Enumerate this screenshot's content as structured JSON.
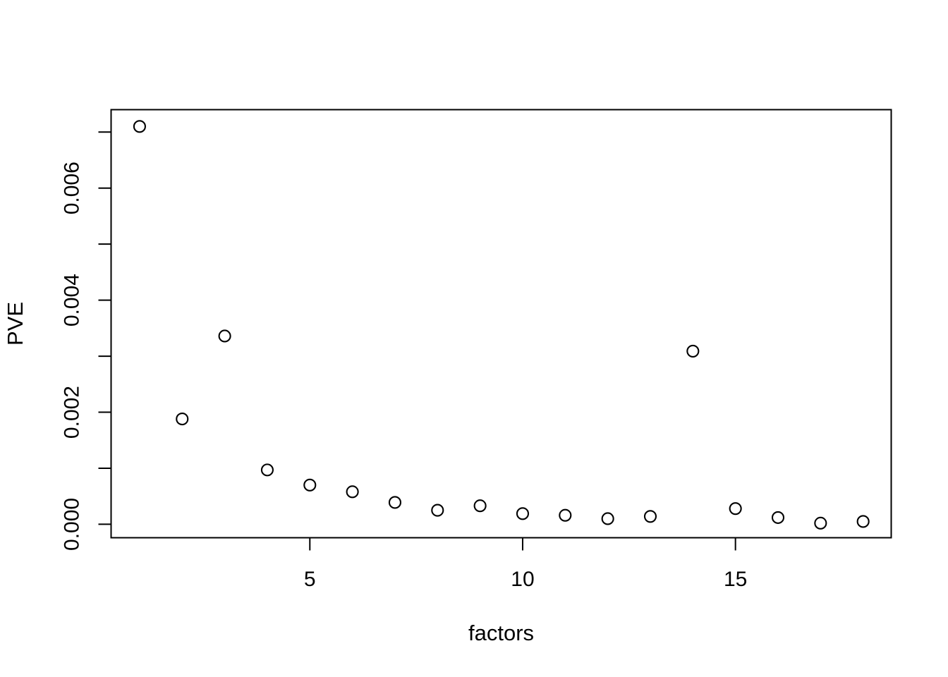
{
  "figure": {
    "background_color": "#ffffff",
    "foreground_color": "#000000"
  },
  "chart_data": {
    "type": "scatter",
    "title": "",
    "xlabel": "factors",
    "ylabel": "PVE",
    "marker": "open-circle",
    "grid": false,
    "legend": null,
    "xlim": [
      0.33,
      18.66
    ],
    "ylim": [
      -0.00024,
      0.0074
    ],
    "x": [
      1,
      2,
      3,
      4,
      5,
      6,
      7,
      8,
      9,
      10,
      11,
      12,
      13,
      14,
      15,
      16,
      17,
      18
    ],
    "y": [
      0.0071,
      0.00188,
      0.00336,
      0.00097,
      0.0007,
      0.00058,
      0.00039,
      0.00025,
      0.00033,
      0.00019,
      0.00016,
      0.0001,
      0.00014,
      0.00309,
      0.00028,
      0.00012,
      2e-05,
      5e-05
    ],
    "x_ticks": [
      {
        "value": 5,
        "label": "5"
      },
      {
        "value": 10,
        "label": "10"
      },
      {
        "value": 15,
        "label": "15"
      }
    ],
    "y_ticks": [
      {
        "value": 0.0,
        "label": "0.000"
      },
      {
        "value": 0.001,
        "label": ""
      },
      {
        "value": 0.002,
        "label": "0.002"
      },
      {
        "value": 0.003,
        "label": ""
      },
      {
        "value": 0.004,
        "label": "0.004"
      },
      {
        "value": 0.005,
        "label": ""
      },
      {
        "value": 0.006,
        "label": "0.006"
      },
      {
        "value": 0.007,
        "label": ""
      }
    ]
  }
}
